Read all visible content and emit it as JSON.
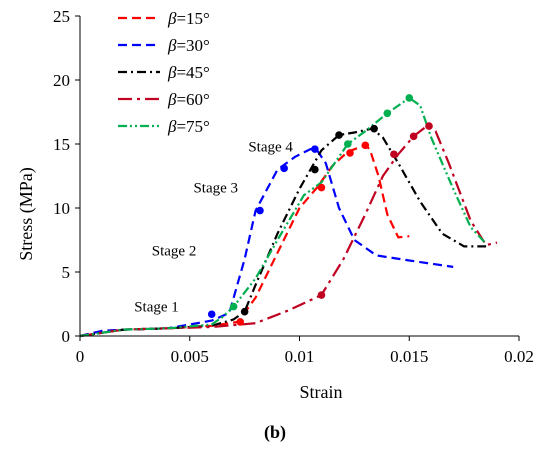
{
  "chart_data": {
    "type": "line",
    "xlabel": "Strain",
    "ylabel": "Stress (MPa)",
    "xlim": [
      0,
      0.02
    ],
    "ylim": [
      0,
      25
    ],
    "xticks": [
      0,
      0.005,
      0.01,
      0.015,
      0.02
    ],
    "xtick_labels": [
      "0",
      "0.005",
      "0.01",
      "0.015",
      "0.02"
    ],
    "yticks": [
      0,
      5,
      10,
      15,
      20,
      25
    ],
    "ytick_labels": [
      "0",
      "5",
      "10",
      "15",
      "20",
      "25"
    ],
    "grid": false,
    "legend_placement": "top-left",
    "caption": "(b)",
    "series": [
      {
        "name": "β=15°",
        "beta": "15",
        "color": "#ff0000",
        "dash": "dashed",
        "x": [
          0,
          0.001,
          0.002,
          0.004,
          0.006,
          0.0072,
          0.008,
          0.009,
          0.01,
          0.0108,
          0.0115,
          0.0122,
          0.013,
          0.0132,
          0.0136,
          0.014,
          0.0145,
          0.015
        ],
        "y": [
          0,
          0.4,
          0.5,
          0.6,
          0.8,
          1.1,
          3.0,
          6.5,
          10.0,
          11.6,
          13.3,
          14.4,
          14.9,
          14.6,
          12.5,
          9.5,
          7.7,
          7.8
        ],
        "markers": [
          {
            "x": 0.0073,
            "y": 1.1
          },
          {
            "x": 0.011,
            "y": 11.6
          },
          {
            "x": 0.0123,
            "y": 14.3
          },
          {
            "x": 0.013,
            "y": 14.9
          }
        ]
      },
      {
        "name": "β=30°",
        "beta": "30",
        "color": "#0000ff",
        "dash": "dashed",
        "x": [
          0,
          0.001,
          0.002,
          0.004,
          0.006,
          0.0068,
          0.0075,
          0.008,
          0.009,
          0.0098,
          0.0105,
          0.0108,
          0.0112,
          0.0118,
          0.0125,
          0.0135,
          0.015,
          0.017
        ],
        "y": [
          0,
          0.4,
          0.5,
          0.6,
          1.2,
          1.8,
          6.0,
          9.8,
          13.0,
          14.0,
          14.6,
          14.5,
          13.5,
          10.0,
          7.5,
          6.3,
          5.9,
          5.4
        ],
        "markers": [
          {
            "x": 0.006,
            "y": 1.7
          },
          {
            "x": 0.0082,
            "y": 9.8
          },
          {
            "x": 0.0093,
            "y": 13.1
          },
          {
            "x": 0.0107,
            "y": 14.6
          }
        ]
      },
      {
        "name": "β=45°",
        "beta": "45",
        "color": "#000000",
        "dash": "dashdot",
        "x": [
          0,
          0.002,
          0.004,
          0.006,
          0.007,
          0.0075,
          0.008,
          0.009,
          0.01,
          0.0105,
          0.011,
          0.0118,
          0.0125,
          0.0133,
          0.0138,
          0.0145,
          0.0155,
          0.0165,
          0.0175,
          0.0185
        ],
        "y": [
          0,
          0.5,
          0.6,
          0.8,
          1.3,
          1.9,
          4.0,
          8.0,
          11.5,
          13.0,
          14.5,
          15.7,
          15.9,
          16.2,
          15.5,
          13.5,
          10.5,
          8.0,
          7.0,
          7.0
        ],
        "markers": [
          {
            "x": 0.0075,
            "y": 1.9
          },
          {
            "x": 0.0107,
            "y": 13.0
          },
          {
            "x": 0.0118,
            "y": 15.7
          },
          {
            "x": 0.0134,
            "y": 16.2
          }
        ]
      },
      {
        "name": "β=60°",
        "beta": "60",
        "color": "#c00020",
        "dash": "longdashdot",
        "x": [
          0,
          0.002,
          0.004,
          0.006,
          0.008,
          0.0095,
          0.011,
          0.012,
          0.013,
          0.0138,
          0.0145,
          0.0152,
          0.0158,
          0.0162,
          0.0168,
          0.0178,
          0.0185,
          0.019
        ],
        "y": [
          0,
          0.5,
          0.6,
          0.7,
          1.0,
          2.0,
          3.2,
          6.0,
          9.5,
          12.5,
          14.2,
          15.6,
          16.4,
          16.0,
          13.5,
          9.0,
          7.1,
          7.3
        ],
        "markers": [
          {
            "x": 0.011,
            "y": 3.2
          },
          {
            "x": 0.0143,
            "y": 14.2
          },
          {
            "x": 0.0152,
            "y": 15.6
          },
          {
            "x": 0.0159,
            "y": 16.4
          }
        ]
      },
      {
        "name": "β=75°",
        "beta": "75",
        "color": "#00b050",
        "dash": "dashdotdot",
        "x": [
          0,
          0.002,
          0.004,
          0.006,
          0.0065,
          0.007,
          0.008,
          0.009,
          0.0102,
          0.011,
          0.0122,
          0.013,
          0.014,
          0.015,
          0.0155,
          0.016,
          0.017,
          0.0178,
          0.0185
        ],
        "y": [
          0,
          0.5,
          0.6,
          0.9,
          1.5,
          2.3,
          4.5,
          7.5,
          11.0,
          12.0,
          15.0,
          16.0,
          17.4,
          18.6,
          18.0,
          15.5,
          11.5,
          8.5,
          7.2
        ],
        "markers": [
          {
            "x": 0.007,
            "y": 2.3
          },
          {
            "x": 0.0122,
            "y": 15.0
          },
          {
            "x": 0.014,
            "y": 17.4
          },
          {
            "x": 0.015,
            "y": 18.6
          }
        ]
      }
    ],
    "annotations": [
      {
        "text": "Stage 1",
        "x": 0.0045,
        "y": 1.9
      },
      {
        "text": "Stage 2",
        "x": 0.0053,
        "y": 6.3
      },
      {
        "text": "Stage 3",
        "x": 0.0072,
        "y": 11.2
      },
      {
        "text": "Stage 4",
        "x": 0.0097,
        "y": 14.4
      }
    ]
  }
}
